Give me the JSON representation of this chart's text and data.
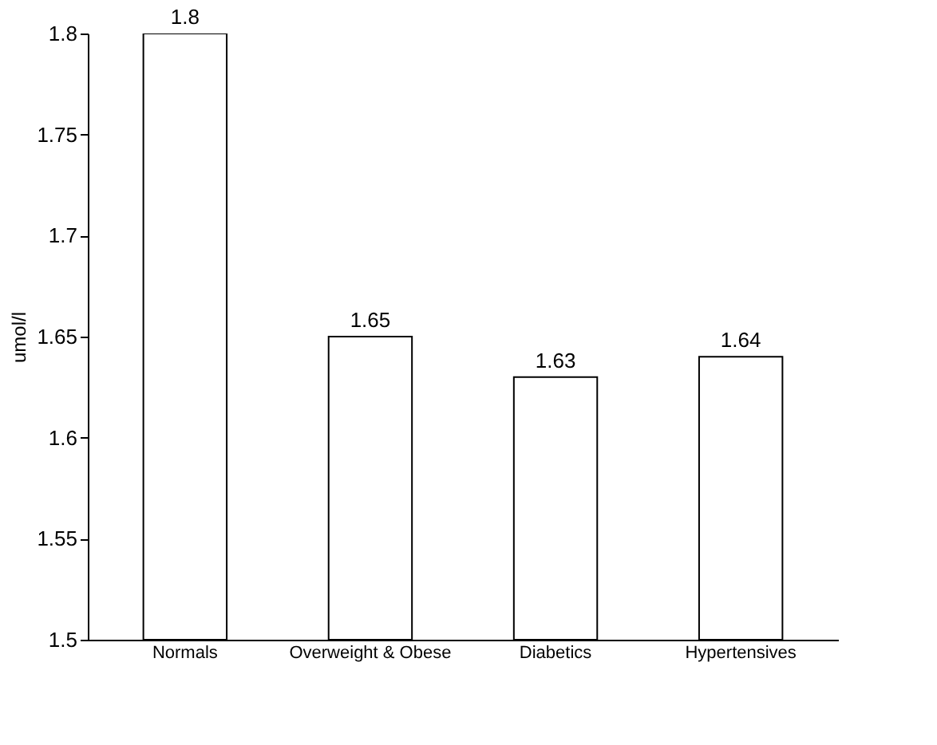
{
  "chart_data": {
    "type": "bar",
    "ylabel": "umol/l",
    "categories": [
      "Normals",
      "Overweight & Obese",
      "Diabetics",
      "Hypertensives"
    ],
    "values": [
      1.8,
      1.65,
      1.63,
      1.64
    ],
    "color": "#ffffff",
    "ylim": [
      1.5,
      1.8
    ],
    "yticks": [
      1.5,
      1.55,
      1.6,
      1.65,
      1.7,
      1.75,
      1.8
    ],
    "grid": false,
    "data_labels": true
  }
}
